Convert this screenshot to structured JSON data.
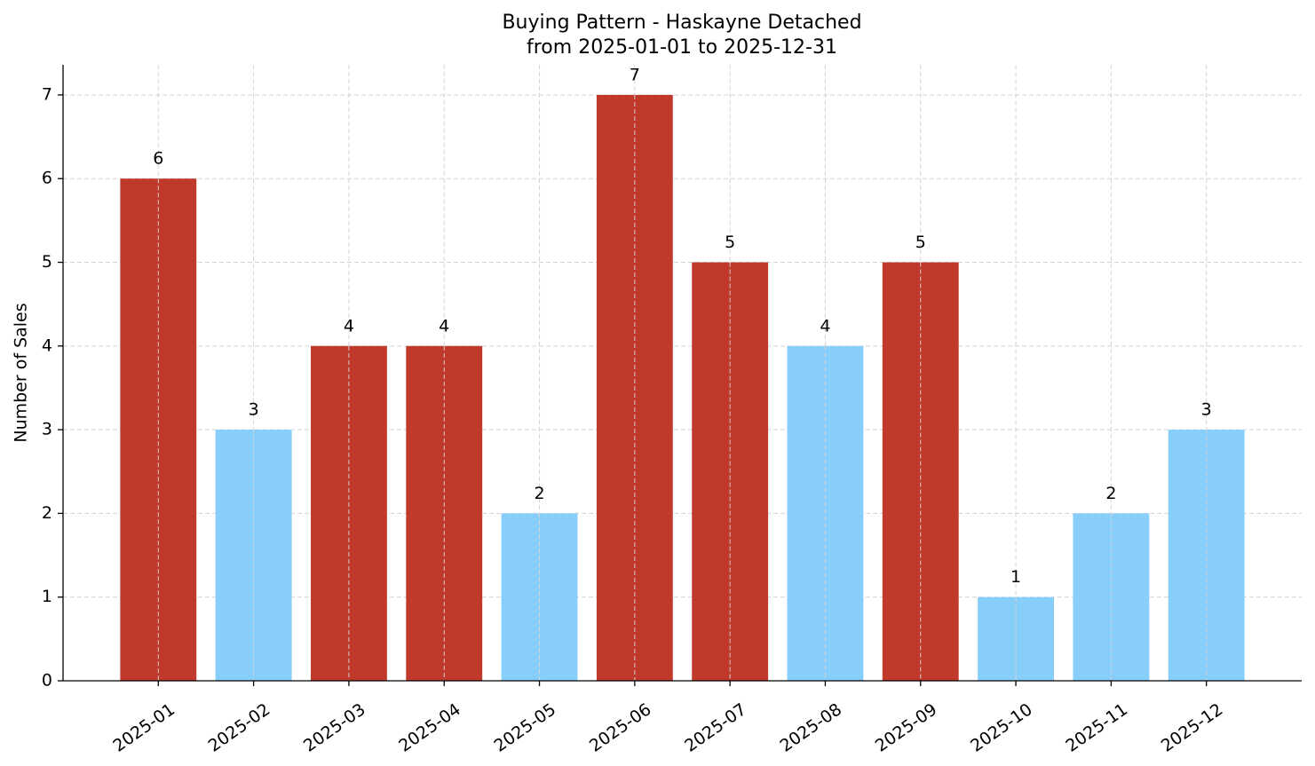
{
  "chart_data": {
    "type": "bar",
    "title": "Buying Pattern - Haskayne Detached",
    "subtitle": "from 2025-01-01 to 2025-12-31",
    "y_label": "Number of Sales",
    "categories": [
      "2025-01",
      "2025-02",
      "2025-03",
      "2025-04",
      "2025-05",
      "2025-06",
      "2025-07",
      "2025-08",
      "2025-09",
      "2025-10",
      "2025-11",
      "2025-12"
    ],
    "values": [
      6,
      3,
      4,
      4,
      2,
      7,
      5,
      4,
      5,
      1,
      2,
      3
    ],
    "colors": [
      "#c0392b",
      "#87cefa",
      "#c0392b",
      "#c0392b",
      "#87cefa",
      "#c0392b",
      "#c0392b",
      "#87cefa",
      "#c0392b",
      "#87cefa",
      "#87cefa",
      "#87cefa"
    ],
    "ylim": [
      0,
      7.36
    ],
    "yticks": [
      0,
      1,
      2,
      3,
      4,
      5,
      6,
      7
    ],
    "grid": true
  }
}
